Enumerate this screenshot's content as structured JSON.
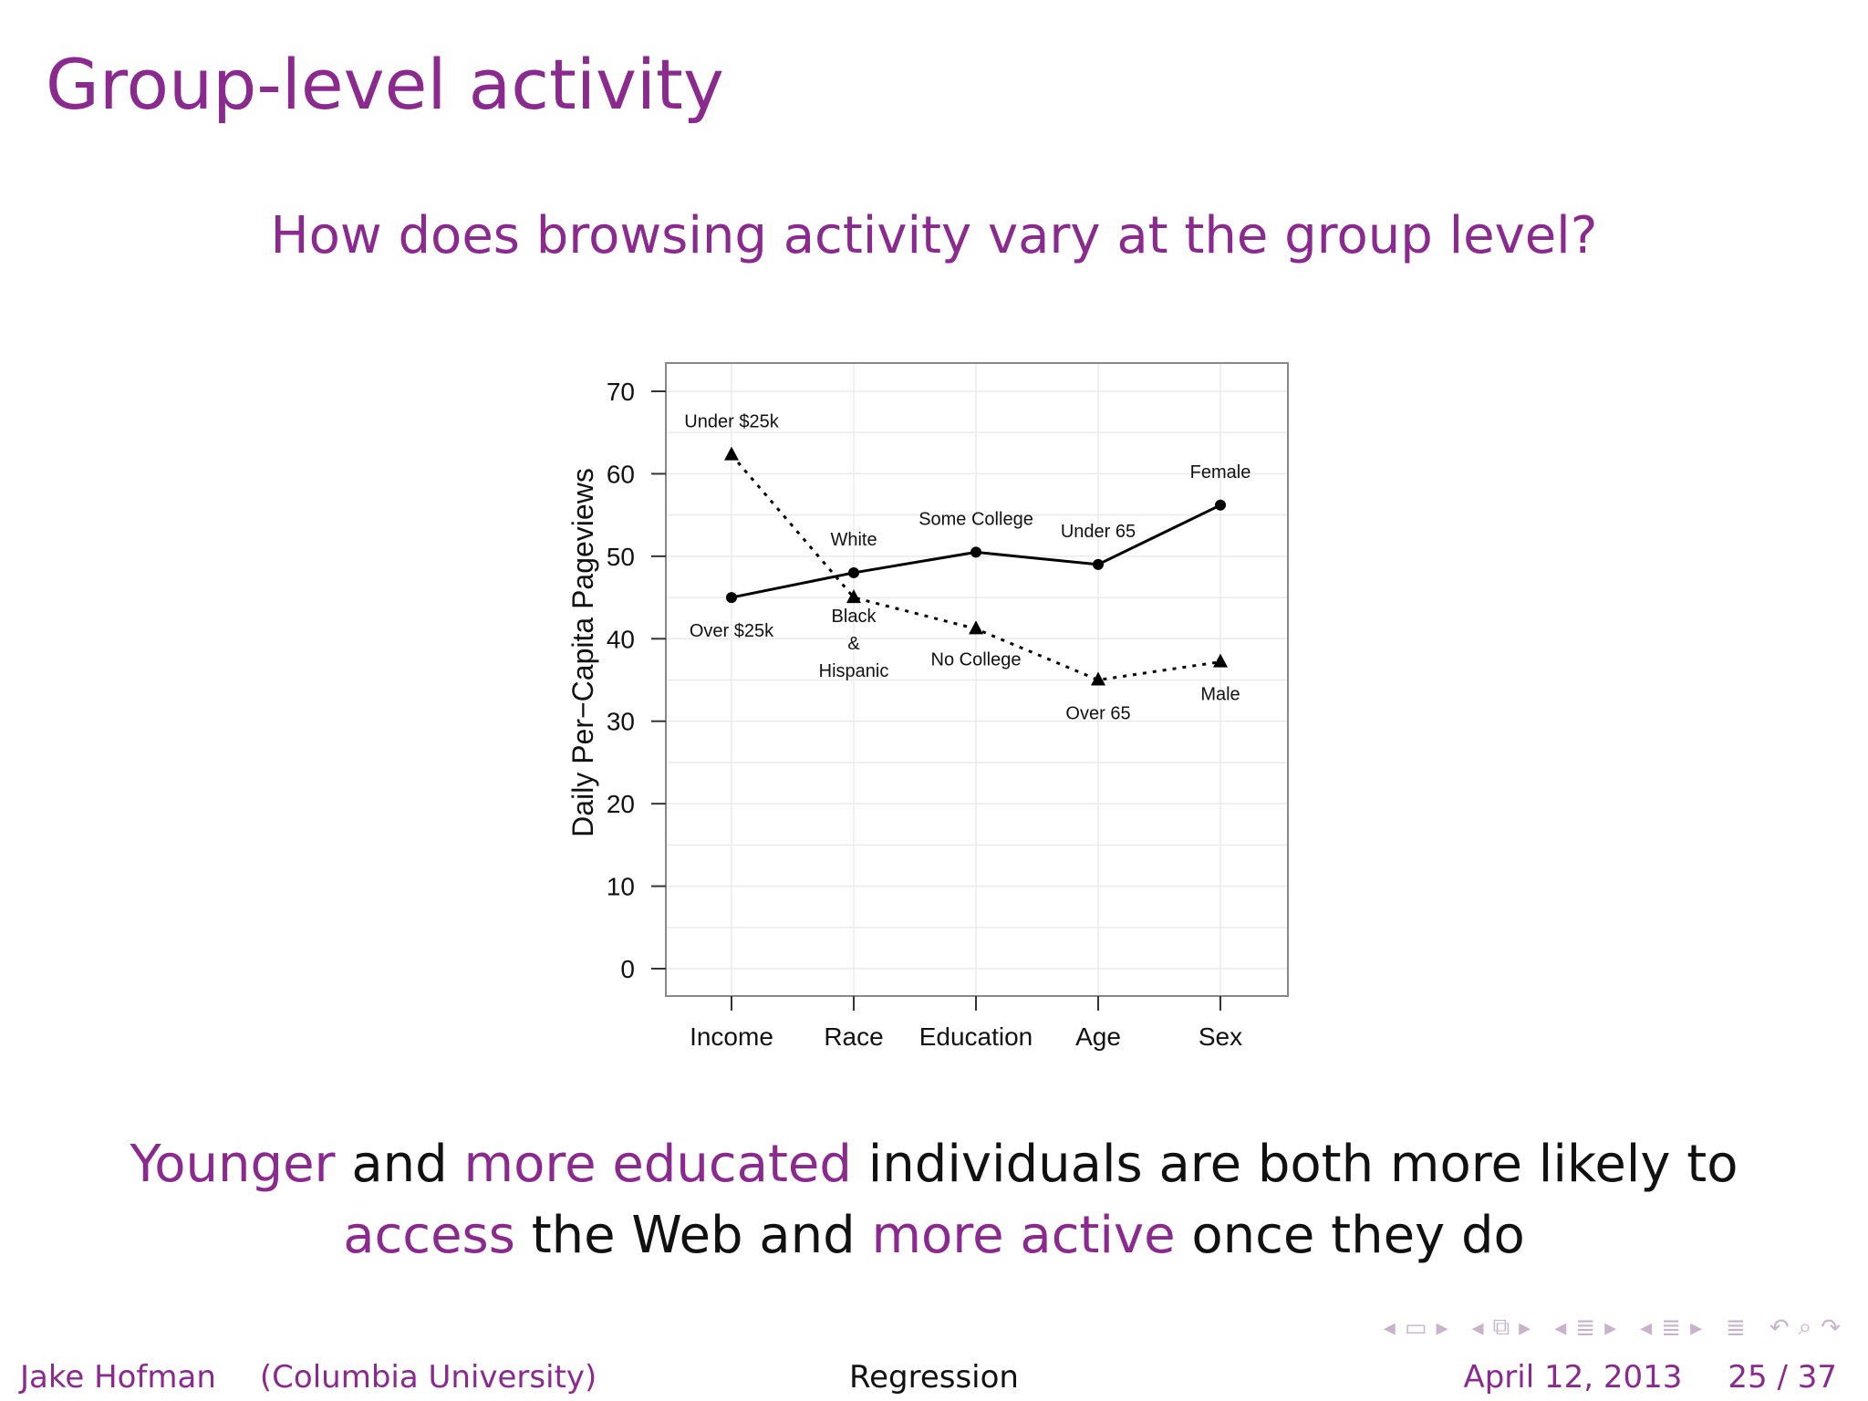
{
  "slide": {
    "title": "Group-level activity",
    "question": "How does browsing activity vary at the group level?",
    "conclusion": {
      "line1": [
        {
          "text": "Younger",
          "highlight": true
        },
        {
          "text": " and ",
          "highlight": false
        },
        {
          "text": "more educated",
          "highlight": true
        },
        {
          "text": " individuals are both more likely to",
          "highlight": false
        }
      ],
      "line2": [
        {
          "text": "access",
          "highlight": true
        },
        {
          "text": " the Web and ",
          "highlight": false
        },
        {
          "text": "more active",
          "highlight": true
        },
        {
          "text": " once they do",
          "highlight": false
        }
      ]
    },
    "accent_color": "#8b2a8e"
  },
  "footer": {
    "author": "Jake Hofman",
    "affiliation": "(Columbia University)",
    "topic": "Regression",
    "date": "April 12, 2013",
    "page": "25 / 37"
  },
  "chart_data": {
    "type": "line",
    "title": "",
    "xlabel": "",
    "ylabel": "Daily Per−Capita Pageviews",
    "categories": [
      "Income",
      "Race",
      "Education",
      "Age",
      "Sex"
    ],
    "ylim": [
      0,
      70
    ],
    "yticks": [
      0,
      10,
      20,
      30,
      40,
      50,
      60,
      70
    ],
    "grid": true,
    "series": [
      {
        "name": "",
        "style": "solid",
        "marker": "circle",
        "values": [
          45,
          48,
          50.5,
          49,
          56.2
        ],
        "labels": [
          "Over $25k",
          "White",
          "Some College",
          "Under 65",
          "Female"
        ]
      },
      {
        "name": "",
        "style": "dotted",
        "marker": "triangle",
        "values": [
          62.3,
          45,
          41.2,
          35,
          37.2
        ],
        "labels": [
          "Under $25k",
          "Black\n&\nHispanic",
          "No College",
          "Over 65",
          "Male"
        ]
      }
    ]
  }
}
